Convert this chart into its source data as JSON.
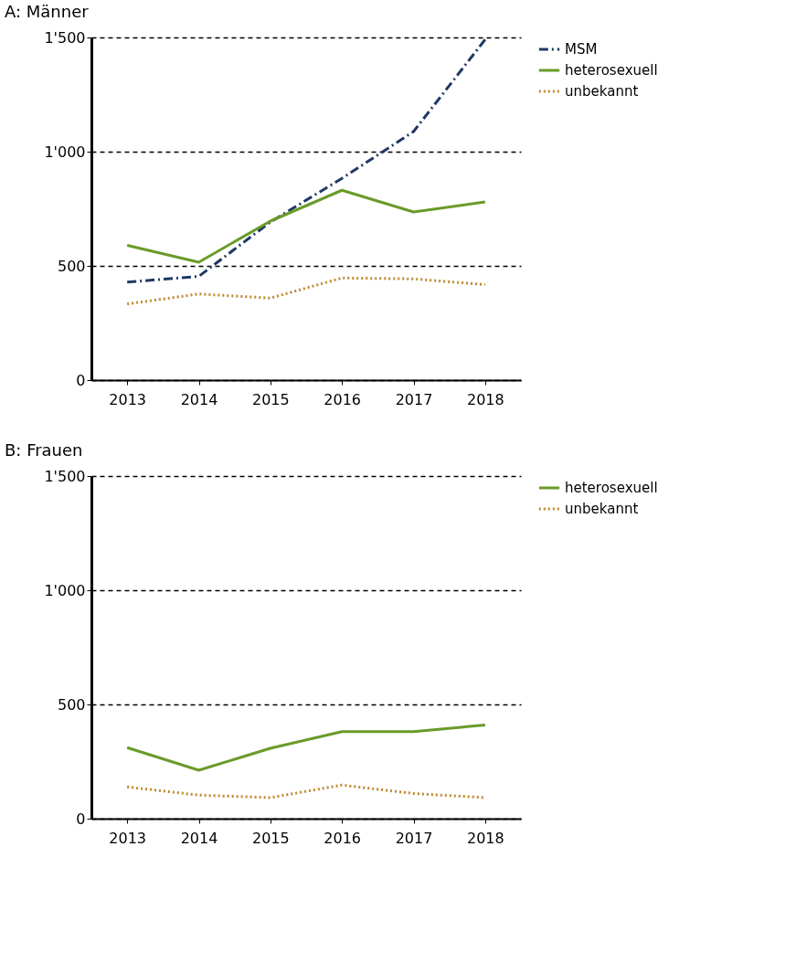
{
  "chart_data": [
    {
      "type": "line",
      "title": "A: Männer",
      "categories": [
        "2013",
        "2014",
        "2015",
        "2016",
        "2017",
        "2018"
      ],
      "series": [
        {
          "name": "MSM",
          "color": "#1f3864",
          "line_style": "dashed",
          "values": [
            429,
            454,
            692,
            883,
            1088,
            1491
          ]
        },
        {
          "name": "heterosexuell",
          "color": "#6a9a2a",
          "line_style": "solid",
          "values": [
            590,
            516,
            696,
            831,
            736,
            780
          ]
        },
        {
          "name": "unbekannt",
          "color": "#c08a30",
          "line_style": "dotted",
          "values": [
            333,
            377,
            359,
            447,
            443,
            418
          ]
        }
      ],
      "ylim": [
        0,
        1500
      ],
      "yticks": [
        0,
        500,
        {
          "value": 1000,
          "label": "1'000"
        },
        {
          "value": 1500,
          "label": "1'500"
        }
      ],
      "grid": "y",
      "legend": "right"
    },
    {
      "type": "line",
      "title": "B: Frauen",
      "categories": [
        "2013",
        "2014",
        "2015",
        "2016",
        "2017",
        "2018"
      ],
      "series": [
        {
          "name": "heterosexuell",
          "color": "#6a9a2a",
          "line_style": "solid",
          "values": [
            311,
            212,
            308,
            381,
            381,
            410
          ]
        },
        {
          "name": "unbekannt",
          "color": "#c08a30",
          "line_style": "dotted",
          "values": [
            139,
            103,
            92,
            147,
            110,
            92
          ]
        }
      ],
      "ylim": [
        0,
        1500
      ],
      "yticks": [
        0,
        500,
        {
          "value": 1000,
          "label": "1'000"
        },
        {
          "value": 1500,
          "label": "1'500"
        }
      ],
      "grid": "y",
      "legend": "right"
    }
  ]
}
